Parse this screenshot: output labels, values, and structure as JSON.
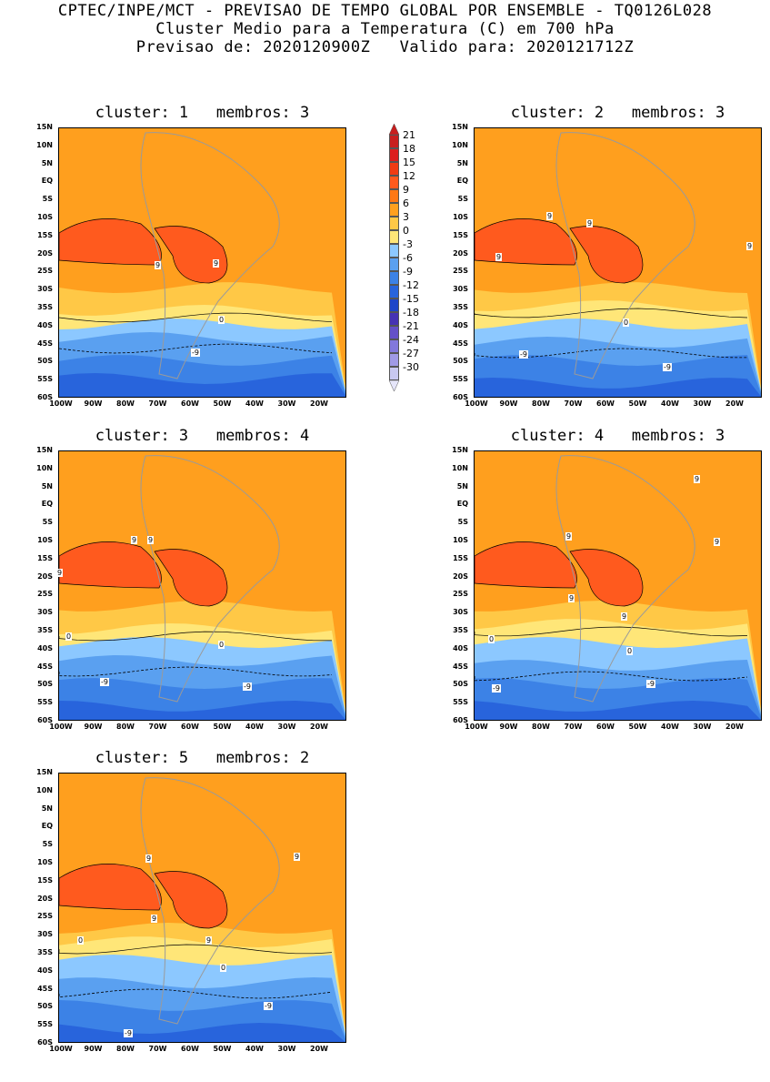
{
  "header": {
    "line1": "CPTEC/INPE/MCT - PREVISAO DE TEMPO GLOBAL POR ENSEMBLE - TQ0126L028",
    "line2": "Cluster Medio para a Temperatura (C) em 700 hPa",
    "line3": "Previsao de: 2020120900Z   Valido para: 2020121712Z"
  },
  "axis": {
    "lat_labels": [
      "15N",
      "10N",
      "5N",
      "EQ",
      "5S",
      "10S",
      "15S",
      "20S",
      "25S",
      "30S",
      "35S",
      "40S",
      "45S",
      "50S",
      "55S",
      "60S"
    ],
    "lon_labels": [
      "100W",
      "90W",
      "80W",
      "70W",
      "60W",
      "50W",
      "40W",
      "30W",
      "20W"
    ]
  },
  "legend": {
    "labels": [
      "21",
      "18",
      "15",
      "12",
      "9",
      "6",
      "3",
      "0",
      "-3",
      "-6",
      "-9",
      "-12",
      "-15",
      "-18",
      "-21",
      "-24",
      "-27",
      "-30"
    ],
    "colors": [
      "#c81e1e",
      "#dc1e1e",
      "#f03c14",
      "#ff5a1e",
      "#ff7814",
      "#ffa01e",
      "#ffc846",
      "#ffe678",
      "#8cc8ff",
      "#5aa0f0",
      "#3c82e6",
      "#2864dc",
      "#1e46c8",
      "#4632b4",
      "#6450c8",
      "#8278dc",
      "#a09ae6",
      "#c8c8f0"
    ],
    "top_color": "#c81e1e",
    "bottom_color": "#e6e6fa"
  },
  "panels": [
    {
      "title": "cluster: 1   membros: 3",
      "labels": {
        "a": "9",
        "b": "9",
        "c": "0",
        "d": "-9"
      }
    },
    {
      "title": "cluster: 2   membros: 3",
      "labels": {
        "a": "9",
        "b": "9",
        "c": "9",
        "d": "9",
        "e": "0",
        "f": "-9",
        "g": "-9"
      }
    },
    {
      "title": "cluster: 3   membros: 4",
      "labels": {
        "a": "9",
        "b": "9",
        "c": "9",
        "d": "0",
        "e": "0",
        "f": "-9",
        "g": "-9"
      }
    },
    {
      "title": "cluster: 4   membros: 3",
      "labels": {
        "a": "9",
        "b": "9",
        "c": "9",
        "d": "9",
        "e": "9",
        "f": "0",
        "g": "0",
        "h": "-9",
        "i": "-9"
      }
    },
    {
      "title": "cluster: 5   membros: 2",
      "labels": {
        "a": "9",
        "b": "9",
        "c": "9",
        "d": "9",
        "e": "0",
        "f": "0",
        "g": "-9",
        "h": "-9"
      }
    }
  ]
}
